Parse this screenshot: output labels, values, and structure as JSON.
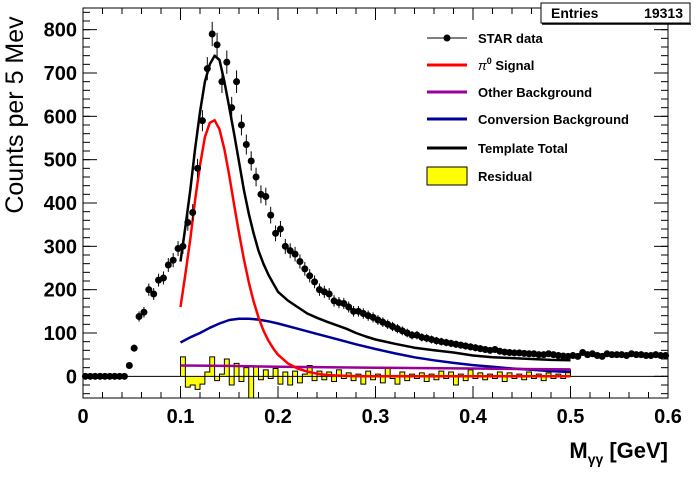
{
  "stats_box": {
    "label": "Entries",
    "value": "19313"
  },
  "chart_data": {
    "type": "scatter",
    "xlabel_main": "M",
    "xlabel_sub": "γγ",
    "xlabel_unit": "[GeV]",
    "ylabel": "Counts per 5 Mev",
    "xlim": [
      0,
      0.6
    ],
    "ylim": [
      -50,
      850
    ],
    "x_ticks": [
      0,
      0.1,
      0.2,
      0.3,
      0.4,
      0.5,
      0.6
    ],
    "x_tick_labels": [
      "0",
      "0.1",
      "0.2",
      "0.3",
      "0.4",
      "0.5",
      "0.6"
    ],
    "y_ticks": [
      0,
      100,
      200,
      300,
      400,
      500,
      600,
      700,
      800
    ],
    "y_tick_labels": [
      "0",
      "100",
      "200",
      "300",
      "400",
      "500",
      "600",
      "700",
      "800"
    ],
    "grid": false,
    "legend_position": "top-right",
    "legend": [
      {
        "label": "STAR data",
        "style": "marker",
        "color": "#000000"
      },
      {
        "label_main": "π",
        "label_sup": "0",
        "label_rest": " Signal",
        "style": "line",
        "color": "#ff0000"
      },
      {
        "label": "Other Background",
        "style": "line",
        "color": "#990099"
      },
      {
        "label": "Conversion Background",
        "style": "line",
        "color": "#000099"
      },
      {
        "label": "Template Total",
        "style": "line",
        "color": "#000000"
      },
      {
        "label": "Residual",
        "style": "fill",
        "color": "#ffff00"
      }
    ],
    "series": {
      "star_data": {
        "x": [
          0.0025,
          0.0075,
          0.0125,
          0.0175,
          0.0225,
          0.0275,
          0.0325,
          0.0375,
          0.0425,
          0.0475,
          0.0525,
          0.0575,
          0.0625,
          0.0675,
          0.0725,
          0.0775,
          0.0825,
          0.0875,
          0.0925,
          0.0975,
          0.1025,
          0.1075,
          0.1125,
          0.1175,
          0.1225,
          0.1275,
          0.1325,
          0.1375,
          0.1425,
          0.1475,
          0.1525,
          0.1575,
          0.1625,
          0.1675,
          0.1725,
          0.1775,
          0.1825,
          0.1875,
          0.1925,
          0.1975,
          0.2025,
          0.2075,
          0.2125,
          0.2175,
          0.2225,
          0.2275,
          0.2325,
          0.2375,
          0.2425,
          0.2475,
          0.2525,
          0.2575,
          0.2625,
          0.2675,
          0.2725,
          0.2775,
          0.2825,
          0.2875,
          0.2925,
          0.2975,
          0.3025,
          0.3075,
          0.3125,
          0.3175,
          0.3225,
          0.3275,
          0.3325,
          0.3375,
          0.3425,
          0.3475,
          0.3525,
          0.3575,
          0.3625,
          0.3675,
          0.3725,
          0.3775,
          0.3825,
          0.3875,
          0.3925,
          0.3975,
          0.4025,
          0.4075,
          0.4125,
          0.4175,
          0.4225,
          0.4275,
          0.4325,
          0.4375,
          0.4425,
          0.4475,
          0.4525,
          0.4575,
          0.4625,
          0.4675,
          0.4725,
          0.4775,
          0.4825,
          0.4875,
          0.4925,
          0.4975,
          0.5025,
          0.5075,
          0.5125,
          0.5175,
          0.5225,
          0.5275,
          0.5325,
          0.5375,
          0.5425,
          0.5475,
          0.5525,
          0.5575,
          0.5625,
          0.5675,
          0.5725,
          0.5775,
          0.5825,
          0.5875,
          0.5925,
          0.5975
        ],
        "y": [
          0,
          0,
          0,
          0,
          0,
          0,
          0,
          0,
          0,
          25,
          65,
          138,
          148,
          200,
          190,
          222,
          227,
          257,
          268,
          295,
          300,
          355,
          378,
          480,
          590,
          710,
          790,
          765,
          680,
          725,
          620,
          680,
          580,
          535,
          497,
          460,
          420,
          415,
          372,
          330,
          340,
          300,
          290,
          282,
          265,
          248,
          232,
          218,
          200,
          195,
          190,
          174,
          170,
          168,
          160,
          150,
          150,
          145,
          140,
          136,
          130,
          125,
          120,
          115,
          110,
          105,
          100,
          95,
          95,
          90,
          88,
          85,
          82,
          80,
          78,
          76,
          74,
          72,
          70,
          68,
          66,
          64,
          62,
          60,
          62,
          58,
          56,
          55,
          54,
          54,
          53,
          52,
          52,
          50,
          50,
          52,
          50,
          48,
          47,
          46,
          48,
          46,
          55,
          50,
          52,
          48,
          46,
          52,
          50,
          50,
          50,
          48,
          52,
          50,
          50,
          48,
          48,
          50,
          48,
          48
        ]
      },
      "pi0_signal": {
        "x": [
          0.1,
          0.105,
          0.11,
          0.115,
          0.12,
          0.125,
          0.13,
          0.135,
          0.14,
          0.145,
          0.15,
          0.155,
          0.16,
          0.165,
          0.17,
          0.175,
          0.18,
          0.185,
          0.19,
          0.195,
          0.2,
          0.21,
          0.22,
          0.23,
          0.24,
          0.25,
          0.26,
          0.27,
          0.28,
          0.29,
          0.3,
          0.32,
          0.34,
          0.36,
          0.38,
          0.4,
          0.42,
          0.44,
          0.46,
          0.48,
          0.5
        ],
        "y": [
          160,
          236,
          317,
          407,
          487,
          552,
          585,
          591,
          570,
          524,
          463,
          396,
          331,
          270,
          217,
          173,
          136,
          106,
          83,
          65,
          50,
          30,
          18,
          11,
          6,
          3,
          2,
          1,
          0.5,
          0.3,
          0.2,
          0,
          0,
          0,
          0,
          0,
          0,
          0,
          0,
          0,
          0
        ]
      },
      "other_background": {
        "x": [
          0.1,
          0.15,
          0.2,
          0.25,
          0.3,
          0.35,
          0.4,
          0.45,
          0.5
        ],
        "y": [
          25,
          24,
          22,
          21,
          20,
          19,
          18,
          17,
          16
        ]
      },
      "conversion_background": {
        "x": [
          0.1,
          0.11,
          0.12,
          0.13,
          0.14,
          0.15,
          0.16,
          0.17,
          0.18,
          0.19,
          0.2,
          0.22,
          0.24,
          0.26,
          0.28,
          0.3,
          0.32,
          0.34,
          0.36,
          0.38,
          0.4,
          0.42,
          0.44,
          0.46,
          0.48,
          0.5
        ],
        "y": [
          78,
          90,
          100,
          112,
          122,
          130,
          133,
          133,
          131,
          127,
          122,
          110,
          98,
          86,
          74,
          63,
          53,
          44,
          37,
          31,
          26,
          22,
          18,
          15,
          12,
          10
        ]
      },
      "template_total": {
        "x": [
          0.1,
          0.105,
          0.11,
          0.115,
          0.12,
          0.125,
          0.13,
          0.135,
          0.14,
          0.145,
          0.15,
          0.155,
          0.16,
          0.165,
          0.17,
          0.175,
          0.18,
          0.185,
          0.19,
          0.195,
          0.2,
          0.21,
          0.22,
          0.23,
          0.24,
          0.25,
          0.26,
          0.27,
          0.28,
          0.29,
          0.3,
          0.32,
          0.34,
          0.36,
          0.38,
          0.4,
          0.42,
          0.44,
          0.46,
          0.48,
          0.5
        ],
        "y": [
          265,
          345,
          430,
          525,
          610,
          680,
          720,
          740,
          730,
          680,
          620,
          560,
          495,
          430,
          375,
          330,
          290,
          260,
          235,
          215,
          195,
          175,
          160,
          145,
          135,
          126,
          118,
          110,
          100,
          92,
          85,
          75,
          66,
          60,
          55,
          48,
          44,
          42,
          40,
          38,
          37
        ]
      },
      "residual": {
        "x": [
          0.1025,
          0.1075,
          0.1125,
          0.1175,
          0.1225,
          0.1275,
          0.1325,
          0.1375,
          0.1425,
          0.1475,
          0.1525,
          0.1575,
          0.1625,
          0.1675,
          0.1725,
          0.1775,
          0.1825,
          0.1875,
          0.1925,
          0.1975,
          0.2025,
          0.2075,
          0.2125,
          0.2175,
          0.2225,
          0.2275,
          0.2325,
          0.2375,
          0.2425,
          0.2475,
          0.2525,
          0.2575,
          0.2625,
          0.2675,
          0.2725,
          0.2775,
          0.2825,
          0.2875,
          0.2925,
          0.2975,
          0.3025,
          0.3075,
          0.3125,
          0.3175,
          0.3225,
          0.3275,
          0.3325,
          0.3375,
          0.3425,
          0.3475,
          0.3525,
          0.3575,
          0.3625,
          0.3675,
          0.3725,
          0.3775,
          0.3825,
          0.3875,
          0.3925,
          0.3975,
          0.4025,
          0.4075,
          0.4125,
          0.4175,
          0.4225,
          0.4275,
          0.4325,
          0.4375,
          0.4425,
          0.4475,
          0.4525,
          0.4575,
          0.4625,
          0.4675,
          0.4725,
          0.4775,
          0.4825,
          0.4875,
          0.4925,
          0.4975
        ],
        "y": [
          45,
          -25,
          -20,
          -30,
          -18,
          10,
          45,
          -10,
          5,
          40,
          -20,
          30,
          -12,
          20,
          -50,
          22,
          -8,
          15,
          -5,
          18,
          -18,
          10,
          -20,
          12,
          -15,
          5,
          25,
          -10,
          12,
          -8,
          10,
          -12,
          15,
          -5,
          8,
          -10,
          5,
          -18,
          12,
          -8,
          5,
          -15,
          20,
          -5,
          -18,
          10,
          -10,
          5,
          -5,
          8,
          -12,
          5,
          -8,
          12,
          -5,
          10,
          -20,
          5,
          -10,
          15,
          -5,
          8,
          -8,
          5,
          -5,
          10,
          -12,
          8,
          -5,
          5,
          -8,
          10,
          -5,
          5,
          -10,
          8,
          -5,
          5,
          -5,
          15
        ]
      }
    }
  }
}
